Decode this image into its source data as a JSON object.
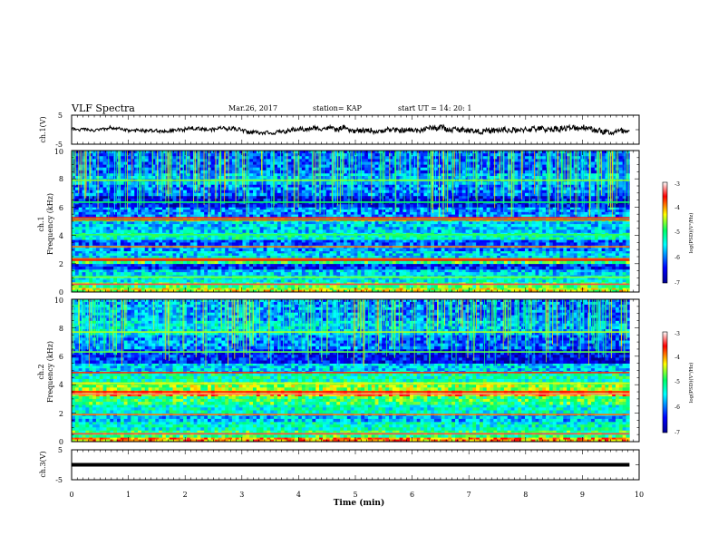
{
  "header": {
    "title": "VLF Spectra",
    "date": "Mar.26, 2017",
    "station": "station= KAP",
    "start_ut": "start  UT =   14: 20: 1"
  },
  "chart_data": [
    {
      "type": "line",
      "id": "ch1-waveform",
      "ylabel": "ch.1(V)",
      "ylim": [
        -5,
        5
      ],
      "yticks": [
        "5",
        "-5"
      ],
      "xlim": [
        0,
        10
      ],
      "x_end": 9.83,
      "approx_range": [
        -1.6,
        1.8
      ],
      "color": "#000000"
    },
    {
      "type": "heatmap",
      "id": "ch1-spectrogram",
      "ylabel": "ch.1\nFrequency (kHz)",
      "ylim": [
        0,
        10
      ],
      "yticks": [
        "0",
        "2",
        "4",
        "6",
        "8",
        "10"
      ],
      "xlim": [
        0,
        10
      ],
      "x_end": 9.83,
      "colorbar": {
        "label": "log(PSD)(V²/Hz)",
        "range": [
          -7,
          -3
        ],
        "ticks": [
          "-3",
          "-4",
          "-5",
          "-6",
          "-7"
        ],
        "stops": [
          "#00008f",
          "#0000ff",
          "#00ffff",
          "#00ff66",
          "#ffff00",
          "#ff0000",
          "#ffffff"
        ]
      },
      "bands": [
        {
          "f": [
            0.0,
            0.3
          ],
          "v": -4.4
        },
        {
          "f": [
            0.3,
            0.7
          ],
          "v": -4.9
        },
        {
          "f": [
            0.7,
            1.2
          ],
          "v": -5.4
        },
        {
          "f": [
            1.2,
            1.6
          ],
          "v": -5.6
        },
        {
          "f": [
            1.6,
            2.0
          ],
          "v": -6.3
        },
        {
          "f": [
            2.0,
            2.4
          ],
          "v": -4.9
        },
        {
          "f": [
            2.4,
            2.9
          ],
          "v": -5.6
        },
        {
          "f": [
            2.9,
            3.3
          ],
          "v": -5.9
        },
        {
          "f": [
            3.3,
            3.7
          ],
          "v": -6.1
        },
        {
          "f": [
            3.7,
            4.2
          ],
          "v": -5.3
        },
        {
          "f": [
            4.2,
            5.0
          ],
          "v": -5.6
        },
        {
          "f": [
            5.0,
            5.3
          ],
          "v": -4.9
        },
        {
          "f": [
            5.3,
            6.0
          ],
          "v": -5.9
        },
        {
          "f": [
            6.0,
            6.8
          ],
          "v": -6.5
        },
        {
          "f": [
            6.8,
            7.6
          ],
          "v": -6.0
        },
        {
          "f": [
            7.6,
            8.4
          ],
          "v": -5.7
        },
        {
          "f": [
            8.4,
            10.0
          ],
          "v": -6.1
        }
      ],
      "lines": [
        {
          "f": 0.55,
          "v": -3.4
        },
        {
          "f": 1.05,
          "v": -4.6
        },
        {
          "f": 2.25,
          "v": -3.6
        },
        {
          "f": 2.35,
          "v": -3.8
        },
        {
          "f": 3.2,
          "v": -3.9
        },
        {
          "f": 4.05,
          "v": -4.8
        },
        {
          "f": 5.1,
          "v": -3.7
        },
        {
          "f": 5.25,
          "v": -3.5
        },
        {
          "f": 6.35,
          "v": -4.9
        },
        {
          "f": 7.9,
          "v": -4.6
        }
      ]
    },
    {
      "type": "heatmap",
      "id": "ch2-spectrogram",
      "ylabel": "ch.2\nFrequency (kHz)",
      "ylim": [
        0,
        10
      ],
      "yticks": [
        "0",
        "2",
        "4",
        "6",
        "8",
        "10"
      ],
      "xlim": [
        0,
        10
      ],
      "x_end": 9.83,
      "colorbar": {
        "label": "log(PSD)(V²/Hz)",
        "range": [
          -7,
          -3
        ],
        "ticks": [
          "-3",
          "-4",
          "-5",
          "-6",
          "-7"
        ],
        "stops": [
          "#00008f",
          "#0000ff",
          "#00ffff",
          "#00ff66",
          "#ffff00",
          "#ff0000",
          "#ffffff"
        ]
      },
      "bands": [
        {
          "f": [
            0.0,
            0.3
          ],
          "v": -4.0
        },
        {
          "f": [
            0.3,
            0.8
          ],
          "v": -4.9
        },
        {
          "f": [
            0.8,
            1.4
          ],
          "v": -5.3
        },
        {
          "f": [
            1.4,
            2.0
          ],
          "v": -5.7
        },
        {
          "f": [
            2.0,
            2.6
          ],
          "v": -5.3
        },
        {
          "f": [
            2.6,
            3.2
          ],
          "v": -4.9
        },
        {
          "f": [
            3.2,
            3.6
          ],
          "v": -4.1
        },
        {
          "f": [
            3.6,
            4.2
          ],
          "v": -4.6
        },
        {
          "f": [
            4.2,
            4.8
          ],
          "v": -5.2
        },
        {
          "f": [
            4.8,
            5.5
          ],
          "v": -5.6
        },
        {
          "f": [
            5.5,
            6.5
          ],
          "v": -6.2
        },
        {
          "f": [
            6.5,
            7.5
          ],
          "v": -5.8
        },
        {
          "f": [
            7.5,
            8.5
          ],
          "v": -5.4
        },
        {
          "f": [
            8.5,
            10.0
          ],
          "v": -5.7
        }
      ],
      "lines": [
        {
          "f": 0.55,
          "v": -3.4
        },
        {
          "f": 1.9,
          "v": -3.9
        },
        {
          "f": 3.35,
          "v": -3.3
        },
        {
          "f": 3.5,
          "v": -3.6
        },
        {
          "f": 4.1,
          "v": -4.4
        },
        {
          "f": 4.85,
          "v": -3.7
        },
        {
          "f": 6.3,
          "v": -4.7
        },
        {
          "f": 7.7,
          "v": -4.5
        }
      ]
    },
    {
      "type": "line",
      "id": "ch3-waveform",
      "ylabel": "ch.3(V)",
      "ylim": [
        -5,
        5
      ],
      "yticks": [
        "5",
        "-5"
      ],
      "xlim": [
        0,
        10
      ],
      "x_end": 9.83,
      "constant_value": 0,
      "xlabel": "Time (min)",
      "xticks": [
        "0",
        "1",
        "2",
        "3",
        "4",
        "5",
        "6",
        "7",
        "8",
        "9",
        "10"
      ],
      "color": "#000000"
    }
  ]
}
